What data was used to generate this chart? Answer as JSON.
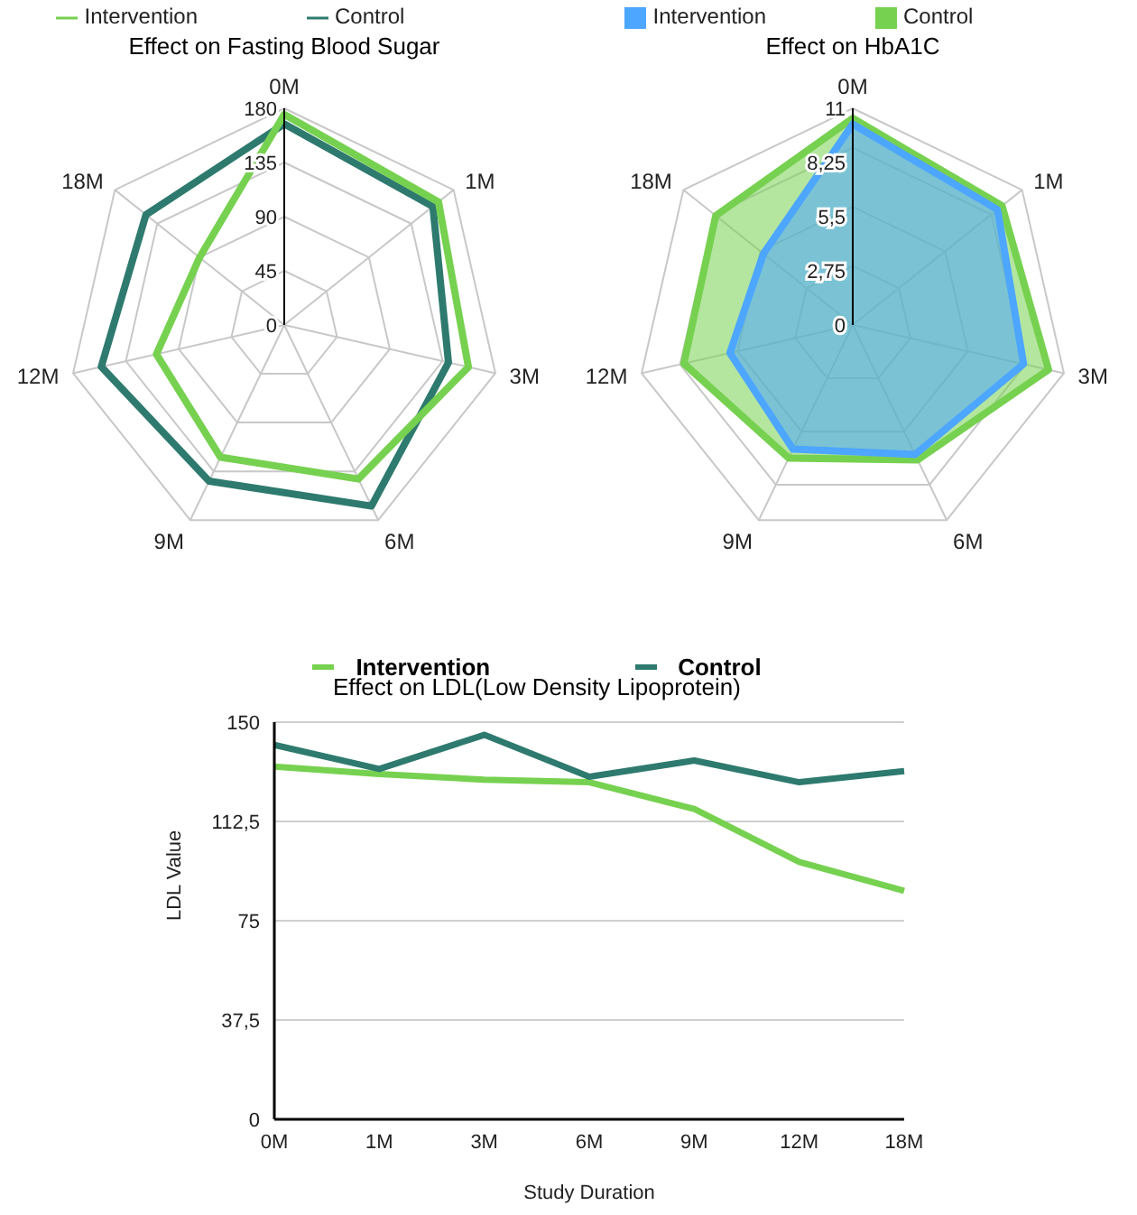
{
  "chart_data": [
    {
      "type": "radar",
      "title": "Effect on Fasting Blood Sugar",
      "categories": [
        "0M",
        "1M",
        "3M",
        "6M",
        "9M",
        "12M",
        "18M"
      ],
      "ylim": [
        0,
        180
      ],
      "yticks": [
        0,
        45,
        90,
        135,
        180
      ],
      "legend": "top",
      "series": [
        {
          "name": "Intervention",
          "color": "#77d150",
          "values": [
            175,
            164,
            157,
            142,
            122,
            109,
            90
          ]
        },
        {
          "name": "Control",
          "color": "#2e7a6e",
          "values": [
            167,
            158,
            140,
            167,
            144,
            156,
            147
          ]
        }
      ]
    },
    {
      "type": "radar",
      "title": "Effect on HbA1C",
      "categories": [
        "0M",
        "1M",
        "3M",
        "6M",
        "9M",
        "12M",
        "18M"
      ],
      "ylim": [
        0,
        11
      ],
      "yticks": [
        0,
        {
          "value": 2.75,
          "label": "2,75"
        },
        {
          "value": 5.5,
          "label": "5,5"
        },
        {
          "value": 8.25,
          "label": "8,25"
        },
        11
      ],
      "legend": "top",
      "series": [
        {
          "name": "Intervention",
          "type": "area",
          "color": "#4da6ff",
          "values": [
            10.2,
            9.4,
            8.9,
            7.3,
            7.0,
            6.4,
            5.8
          ]
        },
        {
          "name": "Control",
          "type": "area",
          "color": "#77d150",
          "values": [
            10.5,
            9.7,
            10.2,
            7.6,
            7.5,
            8.8,
            8.9
          ]
        }
      ]
    },
    {
      "type": "line",
      "title": "Effect on LDL(Low Density Lipoprotein)",
      "xlabel": "Study Duration",
      "ylabel": "LDL Value",
      "categories": [
        "0M",
        "1M",
        "3M",
        "6M",
        "9M",
        "12M",
        "18M"
      ],
      "ylim": [
        0,
        150
      ],
      "yticks": [
        0,
        {
          "value": 37.5,
          "label": "37,5"
        },
        75,
        {
          "value": 112.5,
          "label": "112,5"
        },
        150
      ],
      "grid": "y",
      "legend": "top",
      "series": [
        {
          "name": "Intervention",
          "color": "#77d150",
          "values": [
            133.2,
            130.4,
            128.3,
            127.3,
            117.2,
            97.2,
            86.3
          ]
        },
        {
          "name": "Control",
          "color": "#2e7a6e",
          "values": [
            141.4,
            132.3,
            145.2,
            129.4,
            135.5,
            127.3,
            131.5
          ]
        }
      ]
    }
  ]
}
